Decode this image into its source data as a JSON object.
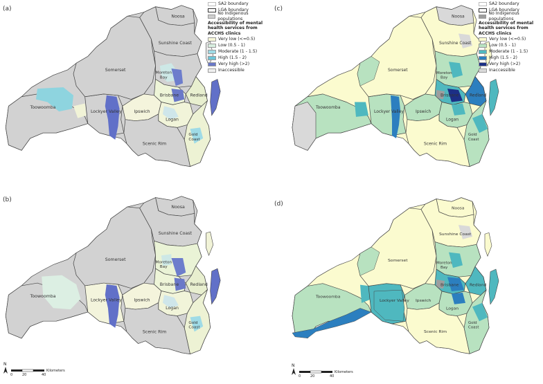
{
  "panels": [
    {
      "id": "a",
      "label": "(a)"
    },
    {
      "id": "b",
      "label": "(b)"
    },
    {
      "id": "c",
      "label": "(c)"
    },
    {
      "id": "d",
      "label": "(d)"
    }
  ],
  "place_labels": {
    "noosa": "Noosa",
    "sunshine": "Sunshine Coast",
    "somerset": "Somerset",
    "moreton": "Moreton",
    "bay": "Bay",
    "brisbane": "Brisbane",
    "redland": "Redland",
    "toowoomba": "Toowoomba",
    "lockyer": "Lockyer Valley",
    "ipswich": "Ipswich",
    "logan": "Logan",
    "gold": "Gold",
    "coast": "Coast",
    "scenic": "Scenic Rim"
  },
  "legend_left": {
    "sa2": "SA2 boundary",
    "lga": "LGA boundary",
    "noind": "No Indigenous populations",
    "title": "Accessibility of mental health services from ACCHS clinics",
    "classes": [
      {
        "label": "Very low (<=0.5)",
        "color": "#f7f7d8"
      },
      {
        "label": "Low (0.5 - 1)",
        "color": "#d8efe0"
      },
      {
        "label": "Moderate (1 - 1.5)",
        "color": "#9fdbe6"
      },
      {
        "label": "High (1.5 - 2)",
        "color": "#6cc5d8"
      },
      {
        "label": "Very high (>2)",
        "color": "#6a78c8"
      },
      {
        "label": "Inaccessible",
        "color": "#efefef"
      }
    ]
  },
  "legend_right": {
    "sa2": "SA2 boundary",
    "lga": "LGA boundary",
    "noind": "No Indigenous populations",
    "title": "Accessibility of mental health services from ACCHS clinics",
    "classes": [
      {
        "label": "Very low (<=0.5)",
        "color": "#fbfbcf"
      },
      {
        "label": "Low (0.5 - 1)",
        "color": "#b8e2c0"
      },
      {
        "label": "Moderate (1 - 1.5)",
        "color": "#4fb8bf"
      },
      {
        "label": "High (1.5 - 2)",
        "color": "#2c7fbf"
      },
      {
        "label": "Very high (>2)",
        "color": "#1c2f86"
      },
      {
        "label": "Inaccessible",
        "color": "#d9d9d9"
      }
    ]
  },
  "scale": {
    "ticks": [
      "0",
      "20",
      "40"
    ],
    "unit": "Kilometers",
    "north": "N"
  },
  "colors": {
    "inaccessible": "#cfcfcf",
    "outline": "#333333",
    "noind": "#9e9e9e"
  }
}
